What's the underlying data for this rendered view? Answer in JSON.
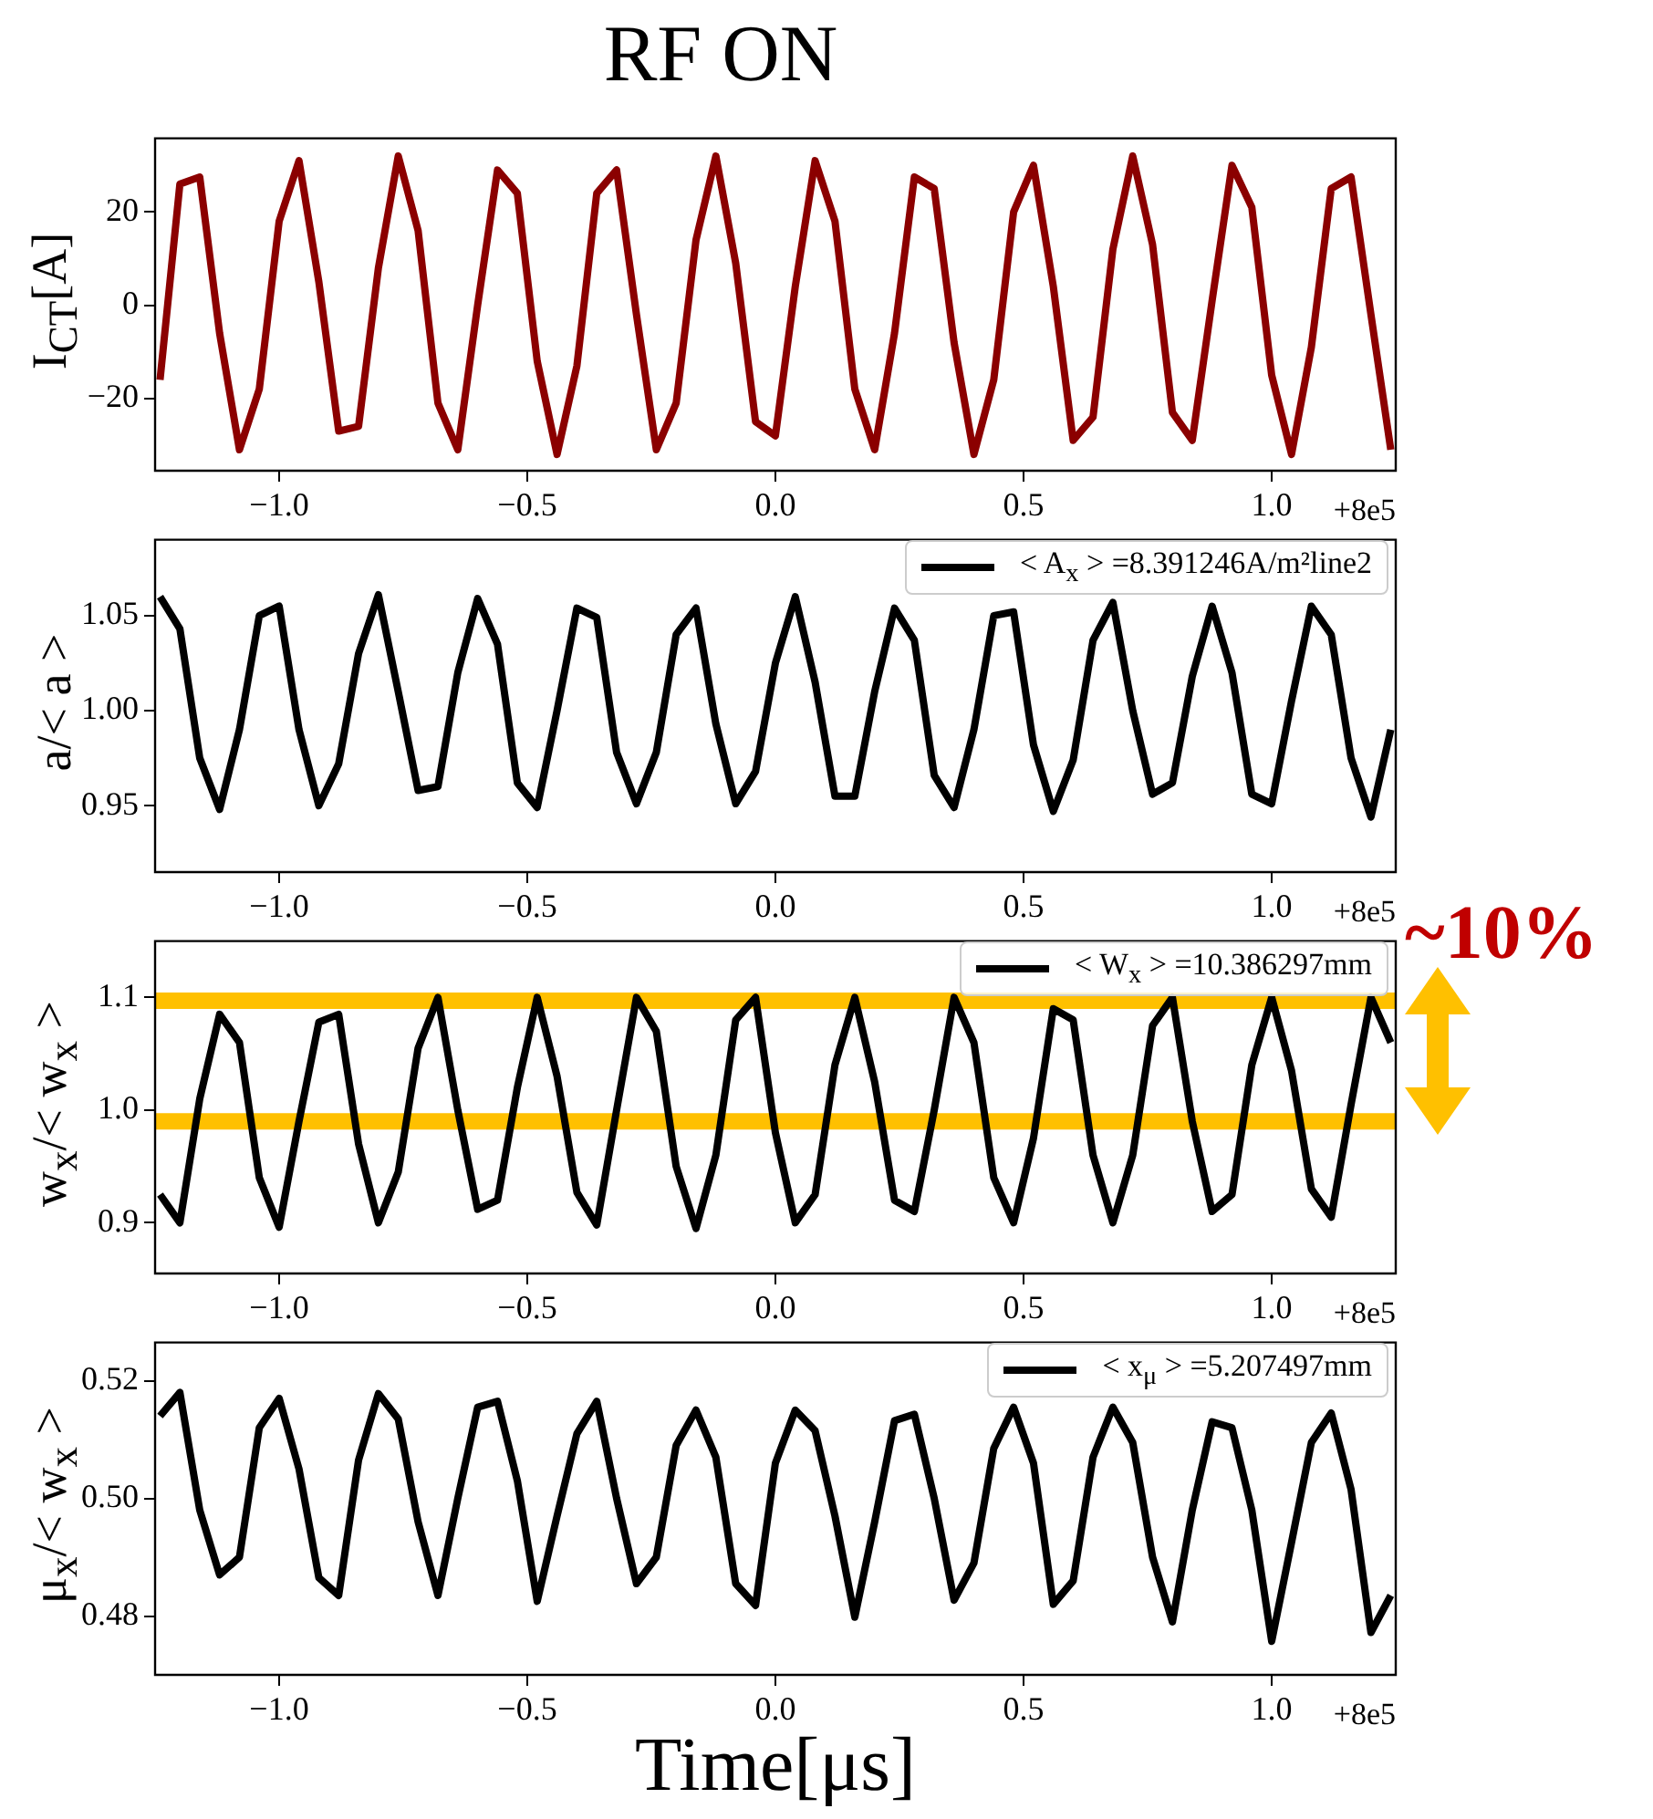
{
  "chart_data": [
    {
      "type": "line",
      "title": "RF ON",
      "ylabel": "I$_{CT}$[A]",
      "x": [
        -1.24,
        -1.2,
        -1.16,
        -1.12,
        -1.08,
        -1.04,
        -1.0,
        -0.96,
        -0.92,
        -0.88,
        -0.84,
        -0.8,
        -0.76,
        -0.72,
        -0.68,
        -0.64,
        -0.6,
        -0.56,
        -0.52,
        -0.48,
        -0.44,
        -0.4,
        -0.36,
        -0.32,
        -0.28,
        -0.24,
        -0.2,
        -0.16,
        -0.12,
        -0.08,
        -0.04,
        0,
        0.04,
        0.08,
        0.12,
        0.16,
        0.2,
        0.24,
        0.28,
        0.32,
        0.36,
        0.4,
        0.44,
        0.48,
        0.52,
        0.56,
        0.6,
        0.64,
        0.68,
        0.72,
        0.76,
        0.8,
        0.84,
        0.88,
        0.92,
        0.96,
        1.0,
        1.04,
        1.08,
        1.12,
        1.16,
        1.2,
        1.24
      ],
      "series": [
        {
          "color": "#8b0000",
          "values": [
            -16,
            26,
            27.5,
            -6,
            -31,
            -18,
            18,
            31,
            5,
            -27,
            -26,
            8,
            32,
            16,
            -21,
            -31,
            0,
            29,
            24,
            -12,
            -32,
            -13,
            24,
            29,
            -2,
            -31,
            -21,
            14,
            32,
            9,
            -25,
            -28,
            4,
            31,
            18,
            -18,
            -31,
            -6,
            27.5,
            25,
            -8,
            -32,
            -16,
            20,
            30,
            4,
            -29,
            -24,
            12,
            32,
            13,
            -23,
            -29,
            1,
            30,
            21,
            -15,
            -32,
            -9,
            25,
            27.5,
            -2,
            -31
          ]
        }
      ],
      "xlim": [
        -1.25,
        1.25
      ],
      "xticks": [
        {
          "value": -1,
          "label": "−1.0"
        },
        {
          "value": -0.5,
          "label": "−0.5"
        },
        {
          "value": 0,
          "label": "0.0"
        },
        {
          "value": 0.5,
          "label": "0.5"
        },
        {
          "value": 1,
          "label": "1.0"
        }
      ],
      "ylim": [
        -35.5,
        35.8
      ],
      "yticks": [
        {
          "value": -20,
          "label": "−20"
        },
        0,
        20
      ],
      "annotations": [
        "+8e5"
      ],
      "grid": false,
      "legend": false,
      "marker": "none",
      "line_style": "solid"
    },
    {
      "type": "line",
      "ylabel": "a/< a >",
      "x": [
        -1.24,
        -1.2,
        -1.16,
        -1.12,
        -1.08,
        -1.04,
        -1.0,
        -0.96,
        -0.92,
        -0.88,
        -0.84,
        -0.8,
        -0.76,
        -0.72,
        -0.68,
        -0.64,
        -0.6,
        -0.56,
        -0.52,
        -0.48,
        -0.44,
        -0.4,
        -0.36,
        -0.32,
        -0.28,
        -0.24,
        -0.2,
        -0.16,
        -0.12,
        -0.08,
        -0.04,
        0,
        0.04,
        0.08,
        0.12,
        0.16,
        0.2,
        0.24,
        0.28,
        0.32,
        0.36,
        0.4,
        0.44,
        0.48,
        0.52,
        0.56,
        0.6,
        0.64,
        0.68,
        0.72,
        0.76,
        0.8,
        0.84,
        0.88,
        0.92,
        0.96,
        1.0,
        1.04,
        1.08,
        1.12,
        1.16,
        1.2,
        1.24
      ],
      "series": [
        {
          "name": "< A$_{x}$ > =8.391246A/m²line2",
          "color": "#000000",
          "values": [
            1.06,
            1.043,
            0.975,
            0.948,
            0.99,
            1.05,
            1.055,
            0.99,
            0.95,
            0.972,
            1.03,
            1.061,
            1.01,
            0.958,
            0.96,
            1.02,
            1.059,
            1.035,
            0.962,
            0.949,
            1.0,
            1.054,
            1.049,
            0.978,
            0.951,
            0.978,
            1.04,
            1.054,
            0.993,
            0.951,
            0.968,
            1.025,
            1.06,
            1.015,
            0.955,
            0.955,
            1.01,
            1.054,
            1.037,
            0.966,
            0.949,
            0.99,
            1.05,
            1.052,
            0.982,
            0.947,
            0.974,
            1.037,
            1.057,
            1.0,
            0.956,
            0.962,
            1.018,
            1.055,
            1.02,
            0.956,
            0.951,
            1.005,
            1.055,
            1.04,
            0.975,
            0.944,
            0.99
          ]
        }
      ],
      "xlim": [
        -1.25,
        1.25
      ],
      "xticks": [
        {
          "value": -1,
          "label": "−1.0"
        },
        {
          "value": -0.5,
          "label": "−0.5"
        },
        {
          "value": 0,
          "label": "0.0"
        },
        {
          "value": 0.5,
          "label": "0.5"
        },
        {
          "value": 1,
          "label": "1.0"
        }
      ],
      "ylim": [
        0.915,
        1.09
      ],
      "yticks": [
        0.95,
        {
          "value": 1,
          "label": "1.00"
        },
        1.05
      ],
      "annotations": [
        "+8e5"
      ],
      "grid": false,
      "legend": "top right",
      "marker": "none",
      "line_style": "solid"
    },
    {
      "type": "line",
      "ylabel": "w$_{x}$/< w$_{x}$ >",
      "x": [
        -1.24,
        -1.2,
        -1.16,
        -1.12,
        -1.08,
        -1.04,
        -1.0,
        -0.96,
        -0.92,
        -0.88,
        -0.84,
        -0.8,
        -0.76,
        -0.72,
        -0.68,
        -0.64,
        -0.6,
        -0.56,
        -0.52,
        -0.48,
        -0.44,
        -0.4,
        -0.36,
        -0.32,
        -0.28,
        -0.24,
        -0.2,
        -0.16,
        -0.12,
        -0.08,
        -0.04,
        0,
        0.04,
        0.08,
        0.12,
        0.16,
        0.2,
        0.24,
        0.28,
        0.32,
        0.36,
        0.4,
        0.44,
        0.48,
        0.52,
        0.56,
        0.6,
        0.64,
        0.68,
        0.72,
        0.76,
        0.8,
        0.84,
        0.88,
        0.92,
        0.96,
        1.0,
        1.04,
        1.08,
        1.12,
        1.16,
        1.2,
        1.24
      ],
      "series": [
        {
          "name": "< W$_{x}$ > =10.386297mm",
          "color": "#000000",
          "values": [
            0.925,
            0.9,
            1.01,
            1.085,
            1.06,
            0.94,
            0.896,
            0.99,
            1.078,
            1.085,
            0.97,
            0.9,
            0.945,
            1.055,
            1.1,
            1.0,
            0.912,
            0.92,
            1.02,
            1.1,
            1.03,
            0.927,
            0.898,
            1.0,
            1.1,
            1.07,
            0.95,
            0.895,
            0.96,
            1.08,
            1.1,
            0.98,
            0.9,
            0.925,
            1.04,
            1.1,
            1.025,
            0.92,
            0.91,
            1.0,
            1.1,
            1.06,
            0.94,
            0.9,
            0.975,
            1.09,
            1.08,
            0.96,
            0.9,
            0.96,
            1.075,
            1.1,
            0.99,
            0.91,
            0.925,
            1.04,
            1.1,
            1.035,
            0.93,
            0.905,
            1.005,
            1.1,
            1.06
          ]
        }
      ],
      "xlim": [
        -1.25,
        1.25
      ],
      "xticks": [
        {
          "value": -1,
          "label": "−1.0"
        },
        {
          "value": -0.5,
          "label": "−0.5"
        },
        {
          "value": 0,
          "label": "0.0"
        },
        {
          "value": 0.5,
          "label": "0.5"
        },
        {
          "value": 1,
          "label": "1.0"
        }
      ],
      "ylim": [
        0.855,
        1.15
      ],
      "yticks": [
        0.9,
        {
          "value": 1,
          "label": "1.0"
        },
        1.1
      ],
      "ref_lines": [
        {
          "axis": "y",
          "value": 1.097,
          "color": "#ffc000"
        },
        {
          "axis": "y",
          "value": 0.99,
          "color": "#ffc000"
        }
      ],
      "annotations": [
        "+8e5",
        "~10%"
      ],
      "grid": false,
      "legend": "top right",
      "marker": "none",
      "line_style": "solid"
    },
    {
      "type": "line",
      "ylabel": "μ$_{x}$/< w$_{x}$ >",
      "xlabel": "Time[μs]",
      "x": [
        -1.24,
        -1.2,
        -1.16,
        -1.12,
        -1.08,
        -1.04,
        -1.0,
        -0.96,
        -0.92,
        -0.88,
        -0.84,
        -0.8,
        -0.76,
        -0.72,
        -0.68,
        -0.64,
        -0.6,
        -0.56,
        -0.52,
        -0.48,
        -0.44,
        -0.4,
        -0.36,
        -0.32,
        -0.28,
        -0.24,
        -0.2,
        -0.16,
        -0.12,
        -0.08,
        -0.04,
        0,
        0.04,
        0.08,
        0.12,
        0.16,
        0.2,
        0.24,
        0.28,
        0.32,
        0.36,
        0.4,
        0.44,
        0.48,
        0.52,
        0.56,
        0.6,
        0.64,
        0.68,
        0.72,
        0.76,
        0.8,
        0.84,
        0.88,
        0.92,
        0.96,
        1.0,
        1.04,
        1.08,
        1.12,
        1.16,
        1.2,
        1.24
      ],
      "series": [
        {
          "name": "< x$_{μ}$ > =5.207497mm",
          "color": "#000000",
          "values": [
            0.514,
            0.518,
            0.498,
            0.487,
            0.49,
            0.512,
            0.517,
            0.505,
            0.4865,
            0.4835,
            0.5065,
            0.5178,
            0.5135,
            0.496,
            0.4835,
            0.5,
            0.5155,
            0.5165,
            0.503,
            0.4825,
            0.497,
            0.511,
            0.5165,
            0.5,
            0.4855,
            0.49,
            0.509,
            0.515,
            0.507,
            0.4855,
            0.4818,
            0.506,
            0.515,
            0.5115,
            0.497,
            0.4798,
            0.496,
            0.5132,
            0.5143,
            0.5,
            0.4827,
            0.489,
            0.5085,
            0.5155,
            0.506,
            0.482,
            0.486,
            0.507,
            0.5155,
            0.5095,
            0.49,
            0.479,
            0.498,
            0.513,
            0.512,
            0.498,
            0.4757,
            0.4925,
            0.5095,
            0.5145,
            0.5015,
            0.4772,
            0.4835
          ]
        }
      ],
      "xlim": [
        -1.25,
        1.25
      ],
      "xticks": [
        {
          "value": -1,
          "label": "−1.0"
        },
        {
          "value": -0.5,
          "label": "−0.5"
        },
        {
          "value": 0,
          "label": "0.0"
        },
        {
          "value": 0.5,
          "label": "0.5"
        },
        {
          "value": 1,
          "label": "1.0"
        }
      ],
      "ylim": [
        0.47,
        0.5265
      ],
      "yticks": [
        0.48,
        {
          "value": 0.5,
          "label": "0.50"
        },
        0.52
      ],
      "annotations": [
        "+8e5"
      ],
      "grid": false,
      "legend": "top right",
      "marker": "none",
      "line_style": "solid"
    }
  ]
}
